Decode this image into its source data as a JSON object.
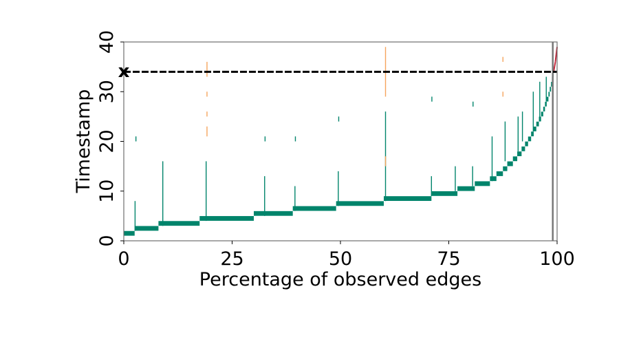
{
  "chart_data": {
    "type": "scatter",
    "title": "",
    "xlabel": "Percentage of observed edges",
    "ylabel": "Timestamp",
    "xlim": [
      0,
      100
    ],
    "ylim": [
      0,
      40
    ],
    "xticks": [
      "0",
      "25",
      "50",
      "75",
      "100"
    ],
    "yticks": [
      "0",
      "10",
      "20",
      "30",
      "40"
    ],
    "grid": false,
    "legend": "none",
    "threshold": {
      "label": "x",
      "value": 34,
      "style": "dashed",
      "color": "#000000"
    },
    "vertical_line": {
      "x": 99,
      "color": "#777777"
    },
    "colors": {
      "observed": "#00846b",
      "orange": "#f5a45c",
      "red": "#c0283c"
    },
    "series": [
      {
        "name": "observed-steps",
        "color": "#00846b",
        "points": [
          {
            "x0": 0.0,
            "x1": 2.5,
            "y": 1.5
          },
          {
            "x0": 2.5,
            "x1": 8.0,
            "y": 2.5
          },
          {
            "x0": 8.0,
            "x1": 17.5,
            "y": 3.5
          },
          {
            "x0": 17.5,
            "x1": 30.0,
            "y": 4.5
          },
          {
            "x0": 30.0,
            "x1": 39.0,
            "y": 5.5
          },
          {
            "x0": 39.0,
            "x1": 49.0,
            "y": 6.5
          },
          {
            "x0": 49.0,
            "x1": 60.0,
            "y": 7.5
          },
          {
            "x0": 60.0,
            "x1": 71.0,
            "y": 8.5
          },
          {
            "x0": 71.0,
            "x1": 77.0,
            "y": 9.5
          },
          {
            "x0": 77.0,
            "x1": 81.0,
            "y": 10.5
          },
          {
            "x0": 81.0,
            "x1": 84.5,
            "y": 11.5
          },
          {
            "x0": 84.5,
            "x1": 86.0,
            "y": 12.5
          },
          {
            "x0": 86.0,
            "x1": 87.5,
            "y": 13.5
          },
          {
            "x0": 87.5,
            "x1": 88.5,
            "y": 14.5
          },
          {
            "x0": 88.5,
            "x1": 89.8,
            "y": 15.5
          },
          {
            "x0": 89.8,
            "x1": 90.8,
            "y": 16.5
          },
          {
            "x0": 90.8,
            "x1": 91.8,
            "y": 17.5
          },
          {
            "x0": 91.8,
            "x1": 92.6,
            "y": 18.5
          },
          {
            "x0": 92.6,
            "x1": 93.3,
            "y": 19.5
          },
          {
            "x0": 93.3,
            "x1": 94.0,
            "y": 20.5
          },
          {
            "x0": 94.0,
            "x1": 94.6,
            "y": 21.5
          },
          {
            "x0": 94.6,
            "x1": 95.2,
            "y": 22.5
          },
          {
            "x0": 95.2,
            "x1": 95.8,
            "y": 23.5
          },
          {
            "x0": 95.8,
            "x1": 96.3,
            "y": 24.5
          },
          {
            "x0": 96.3,
            "x1": 96.8,
            "y": 25.5
          },
          {
            "x0": 96.8,
            "x1": 97.2,
            "y": 26.5
          },
          {
            "x0": 97.2,
            "x1": 97.6,
            "y": 27.5
          },
          {
            "x0": 97.6,
            "x1": 98.0,
            "y": 28.5
          },
          {
            "x0": 98.0,
            "x1": 98.3,
            "y": 29.5
          },
          {
            "x0": 98.3,
            "x1": 98.6,
            "y": 30.5
          },
          {
            "x0": 98.6,
            "x1": 98.8,
            "y": 31.5
          },
          {
            "x0": 98.8,
            "x1": 99.0,
            "y": 32.5
          },
          {
            "x0": 99.0,
            "x1": 99.2,
            "y": 33.5
          }
        ]
      },
      {
        "name": "observed-spikes",
        "color": "#00846b",
        "points": [
          {
            "x": 2.6,
            "y0": 2,
            "y1": 8
          },
          {
            "x": 2.8,
            "y0": 20,
            "y1": 21
          },
          {
            "x": 9.0,
            "y0": 3,
            "y1": 16
          },
          {
            "x": 19.0,
            "y0": 4,
            "y1": 16
          },
          {
            "x": 32.5,
            "y0": 5,
            "y1": 13
          },
          {
            "x": 32.6,
            "y0": 20,
            "y1": 21
          },
          {
            "x": 39.5,
            "y0": 6,
            "y1": 11
          },
          {
            "x": 39.6,
            "y0": 20,
            "y1": 21
          },
          {
            "x": 49.5,
            "y0": 7,
            "y1": 14
          },
          {
            "x": 49.6,
            "y0": 24,
            "y1": 25
          },
          {
            "x": 60.4,
            "y0": 8,
            "y1": 26
          },
          {
            "x": 71.0,
            "y0": 9,
            "y1": 13
          },
          {
            "x": 71.1,
            "y0": 28,
            "y1": 29
          },
          {
            "x": 76.5,
            "y0": 10,
            "y1": 15
          },
          {
            "x": 80.5,
            "y0": 11,
            "y1": 15
          },
          {
            "x": 80.6,
            "y0": 27,
            "y1": 28
          },
          {
            "x": 85.0,
            "y0": 12,
            "y1": 21
          },
          {
            "x": 88.0,
            "y0": 16,
            "y1": 24
          },
          {
            "x": 91.0,
            "y0": 18,
            "y1": 25
          },
          {
            "x": 92.0,
            "y0": 20,
            "y1": 26
          },
          {
            "x": 94.5,
            "y0": 22,
            "y1": 30
          },
          {
            "x": 96.0,
            "y0": 24,
            "y1": 32
          },
          {
            "x": 97.5,
            "y0": 28,
            "y1": 33
          }
        ]
      },
      {
        "name": "orange-segments",
        "color": "#f5a45c",
        "points": [
          {
            "x": 19.2,
            "y0": 33,
            "y1": 36
          },
          {
            "x": 19.2,
            "y0": 29,
            "y1": 30
          },
          {
            "x": 19.2,
            "y0": 25,
            "y1": 26
          },
          {
            "x": 19.2,
            "y0": 21,
            "y1": 23
          },
          {
            "x": 60.4,
            "y0": 29,
            "y1": 39
          },
          {
            "x": 60.4,
            "y0": 15,
            "y1": 17
          },
          {
            "x": 87.5,
            "y0": 36,
            "y1": 37
          },
          {
            "x": 87.5,
            "y0": 29,
            "y1": 30
          }
        ]
      },
      {
        "name": "red-curve",
        "color": "#c0283c",
        "points": [
          {
            "x0": 99.2,
            "y0": 34,
            "x1": 99.6,
            "y1": 36
          },
          {
            "x0": 99.6,
            "y0": 36,
            "x1": 100,
            "y1": 39
          }
        ]
      }
    ]
  }
}
